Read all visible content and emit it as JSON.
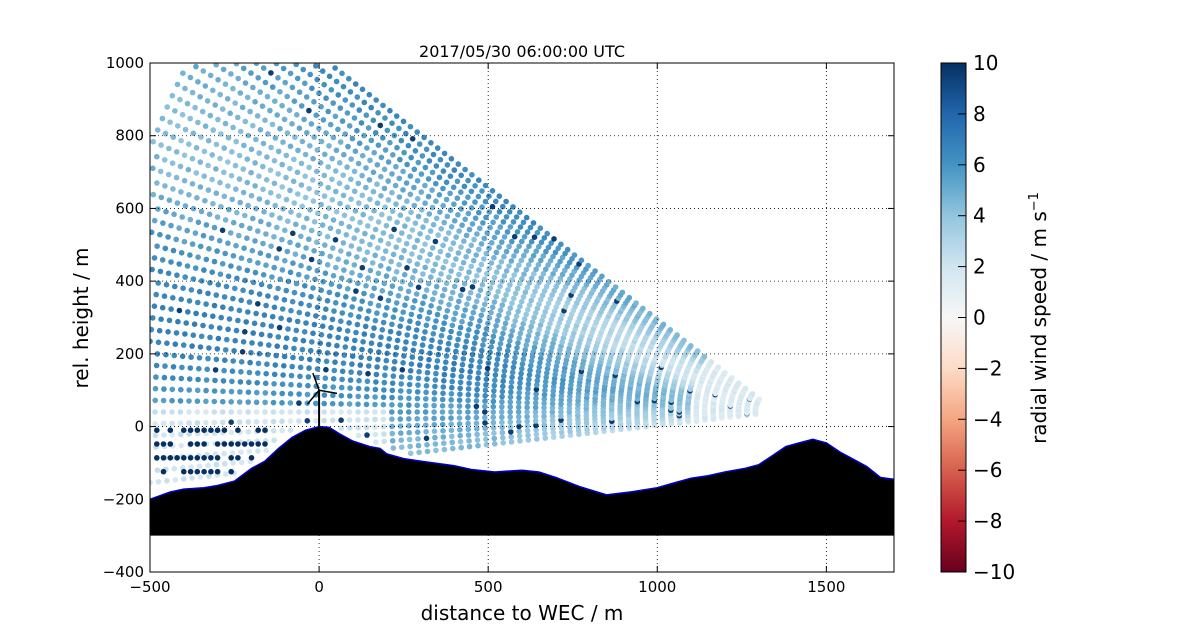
{
  "chart_data": {
    "type": "scatter",
    "title": "2017/05/30 06:00:00 UTC",
    "xlabel": "distance to WEC / m",
    "ylabel": "rel. height / m",
    "xlim": [
      -500,
      1700
    ],
    "ylim": [
      -400,
      1000
    ],
    "x_ticks": [
      -500,
      0,
      500,
      1000,
      1500
    ],
    "x_tick_labels": [
      "−500",
      "0",
      "500",
      "1000",
      "1500"
    ],
    "y_ticks": [
      -400,
      -200,
      0,
      200,
      400,
      600,
      800,
      1000
    ],
    "y_tick_labels": [
      "−400",
      "−200",
      "0",
      "200",
      "400",
      "600",
      "800",
      "1000"
    ],
    "grid": true,
    "colormap": "RdBu",
    "colorbar": {
      "label": "radial wind speed / m s",
      "label_superscript": "−1",
      "range": [
        -10,
        10
      ],
      "ticks": [
        10,
        8,
        6,
        4,
        2,
        0,
        -2,
        -4,
        -6,
        -8,
        -10
      ],
      "tick_labels": [
        "10",
        "8",
        "6",
        "4",
        "2",
        "0",
        "−2",
        "−4",
        "−6",
        "−8",
        "−10"
      ],
      "colors": [
        "#67001f",
        "#b2182b",
        "#d6604d",
        "#f4a582",
        "#fddbc7",
        "#f7f7f7",
        "#d1e5f0",
        "#92c5de",
        "#4393c3",
        "#2166ac",
        "#053061"
      ]
    },
    "scan": {
      "description": "RHI lidar scan, radial velocity samples along beams",
      "origin_x": 1350,
      "origin_y": 40,
      "elevation_range_deg": [
        -6,
        36
      ],
      "range_max_m": 2000,
      "radial_wind_speed_range": [
        0,
        10
      ]
    },
    "turbine": {
      "x": 0,
      "hub_height": 100,
      "rotor_radius": 50
    },
    "terrain": {
      "fill_color": "#000000",
      "edge_color": "#0000cc",
      "base": -300,
      "profile": [
        [
          -500,
          -200
        ],
        [
          -440,
          -180
        ],
        [
          -400,
          -172
        ],
        [
          -340,
          -168
        ],
        [
          -300,
          -162
        ],
        [
          -250,
          -150
        ],
        [
          -200,
          -115
        ],
        [
          -160,
          -95
        ],
        [
          -120,
          -60
        ],
        [
          -80,
          -30
        ],
        [
          -40,
          -10
        ],
        [
          0,
          0
        ],
        [
          30,
          -2
        ],
        [
          60,
          -20
        ],
        [
          100,
          -40
        ],
        [
          150,
          -55
        ],
        [
          180,
          -60
        ],
        [
          200,
          -75
        ],
        [
          250,
          -88
        ],
        [
          300,
          -95
        ],
        [
          400,
          -108
        ],
        [
          450,
          -118
        ],
        [
          520,
          -125
        ],
        [
          600,
          -120
        ],
        [
          650,
          -125
        ],
        [
          700,
          -140
        ],
        [
          770,
          -165
        ],
        [
          850,
          -188
        ],
        [
          920,
          -180
        ],
        [
          1000,
          -168
        ],
        [
          1050,
          -155
        ],
        [
          1100,
          -142
        ],
        [
          1150,
          -135
        ],
        [
          1200,
          -125
        ],
        [
          1260,
          -115
        ],
        [
          1300,
          -105
        ],
        [
          1340,
          -80
        ],
        [
          1380,
          -55
        ],
        [
          1420,
          -45
        ],
        [
          1460,
          -35
        ],
        [
          1500,
          -45
        ],
        [
          1540,
          -70
        ],
        [
          1580,
          -90
        ],
        [
          1620,
          -110
        ],
        [
          1660,
          -140
        ],
        [
          1700,
          -145
        ]
      ]
    }
  }
}
